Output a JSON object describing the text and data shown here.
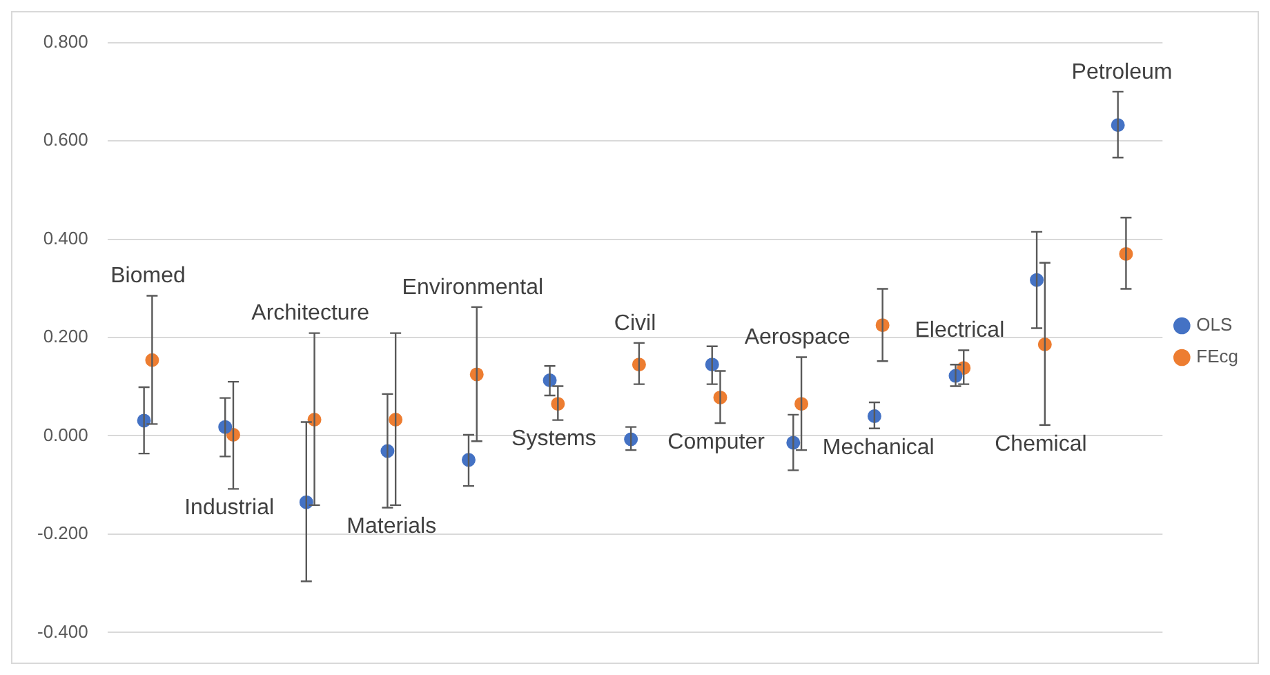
{
  "chart_data": {
    "type": "scatter",
    "categories": [
      null,
      null,
      null,
      null,
      null,
      null,
      null,
      null,
      null,
      null,
      null,
      null,
      null
    ],
    "series": [
      {
        "name": "OLS",
        "color": "#4472c4",
        "values": [
          0.031,
          0.018,
          -0.135,
          -0.031,
          -0.049,
          0.113,
          -0.007,
          0.145,
          -0.014,
          0.04,
          0.122,
          0.317,
          0.632
        ],
        "errors": [
          [
            -0.036,
            0.099
          ],
          [
            -0.042,
            0.077
          ],
          [
            -0.296,
            0.028
          ],
          [
            -0.146,
            0.085
          ],
          [
            -0.102,
            0.002
          ],
          [
            0.082,
            0.142
          ],
          [
            -0.029,
            0.018
          ],
          [
            0.105,
            0.182
          ],
          [
            -0.07,
            0.043
          ],
          [
            0.015,
            0.068
          ],
          [
            0.101,
            0.145
          ],
          [
            0.219,
            0.415
          ],
          [
            0.566,
            0.7
          ]
        ]
      },
      {
        "name": "FEcg",
        "color": "#ed7d31",
        "values": [
          0.154,
          0.002,
          0.033,
          0.033,
          0.125,
          0.065,
          0.145,
          0.078,
          0.065,
          0.225,
          0.138,
          0.186,
          0.37
        ],
        "errors": [
          [
            0.024,
            0.285
          ],
          [
            -0.108,
            0.11
          ],
          [
            -0.141,
            0.209
          ],
          [
            -0.141,
            0.209
          ],
          [
            -0.011,
            0.262
          ],
          [
            0.032,
            0.101
          ],
          [
            0.105,
            0.189
          ],
          [
            0.026,
            0.132
          ],
          [
            -0.029,
            0.16
          ],
          [
            0.152,
            0.299
          ],
          [
            0.105,
            0.174
          ],
          [
            0.022,
            0.352
          ],
          [
            0.299,
            0.444
          ]
        ]
      }
    ],
    "annotations": [
      "Biomed",
      "Industrial",
      "Architecture",
      "Materials",
      "Environmental",
      "Systems",
      "Civil",
      "Computer",
      "Aerospace",
      "Mechanical",
      "Electrical",
      "Chemical",
      "Petroleum"
    ],
    "ylim": [
      -0.4,
      0.8
    ],
    "yticks": [
      {
        "value": -0.4,
        "label": "-0.400"
      },
      {
        "value": -0.2,
        "label": "-0.200"
      },
      {
        "value": 0,
        "label": "0.000"
      },
      {
        "value": 0.2,
        "label": "0.200"
      },
      {
        "value": 0.4,
        "label": "0.400"
      },
      {
        "value": 0.6,
        "label": "0.600"
      },
      {
        "value": 0.8,
        "label": "0.800"
      }
    ],
    "grid": "y",
    "legend": "right",
    "marker": "circle"
  }
}
